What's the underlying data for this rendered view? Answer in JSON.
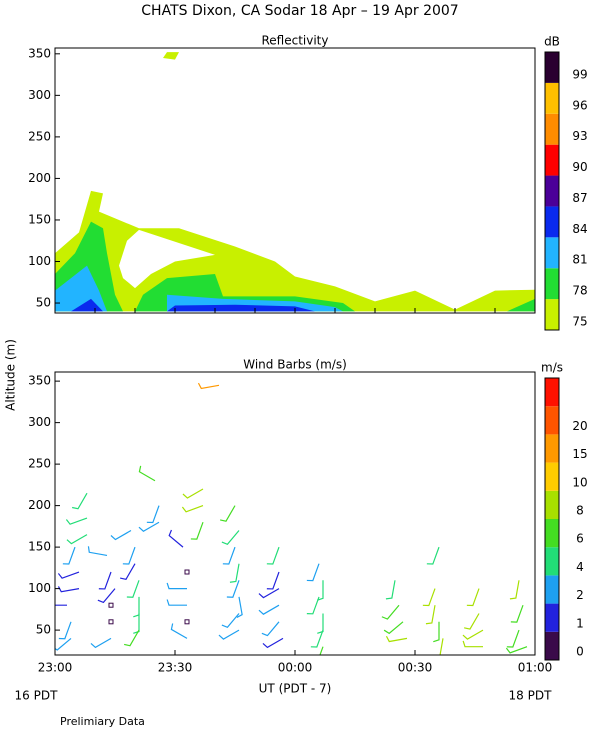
{
  "title": "CHATS Dixon, CA  Sodar  18 Apr – 19 Apr 2007",
  "xlabel": "UT  (PDT - 7)",
  "ylabel": "Altitude (m)",
  "date_labels": [
    "16 PDT",
    "18 PDT"
  ],
  "note": "Prelimiary Data",
  "chart_data": [
    {
      "type": "contour",
      "title": "Reflectivity",
      "xlim": [
        0,
        120
      ],
      "ylim": [
        38,
        357
      ],
      "xticks": [
        0,
        10,
        20,
        30,
        40,
        50,
        60,
        70,
        80,
        90,
        100,
        110,
        120
      ],
      "yticks": [
        50,
        100,
        150,
        200,
        250,
        300,
        350
      ],
      "colorbar": {
        "label": "dB",
        "levels": [
          75,
          78,
          81,
          84,
          87,
          90,
          93,
          96,
          99
        ],
        "colors": [
          "#c8f000",
          "#22dd33",
          "#22b4ff",
          "#0a2aee",
          "#4b0099",
          "#ff0000",
          "#ff8c00",
          "#ffc000",
          "#2a0030"
        ]
      },
      "regions": [
        {
          "color": "#c8f000",
          "rings": [
            [
              [
                0,
                40
              ],
              [
                0,
                110
              ],
              [
                6,
                135
              ],
              [
                9,
                185
              ],
              [
                12,
                182
              ],
              [
                11,
                160
              ],
              [
                21,
                140
              ],
              [
                31,
                140
              ],
              [
                45,
                118
              ],
              [
                55,
                100
              ],
              [
                60,
                82
              ],
              [
                70,
                70
              ],
              [
                80,
                52
              ],
              [
                90,
                65
              ],
              [
                100,
                42
              ],
              [
                110,
                65
              ],
              [
                120,
                66
              ],
              [
                120,
                40
              ]
            ],
            [
              [
                16,
                95
              ],
              [
                18,
                125
              ],
              [
                21,
                138
              ],
              [
                40,
                108
              ],
              [
                30,
                100
              ],
              [
                24,
                85
              ],
              [
                20,
                68
              ],
              [
                17,
                80
              ]
            ],
            [
              [
                27,
                345
              ],
              [
                28,
                352
              ],
              [
                31,
                352
              ],
              [
                30,
                343
              ]
            ]
          ]
        },
        {
          "color": "#22dd33",
          "rings": [
            [
              [
                0,
                40
              ],
              [
                0,
                85
              ],
              [
                5,
                110
              ],
              [
                9,
                148
              ],
              [
                12,
                140
              ],
              [
                13,
                110
              ],
              [
                15,
                60
              ],
              [
                17,
                40
              ]
            ],
            [
              [
                20,
                40
              ],
              [
                22,
                60
              ],
              [
                28,
                80
              ],
              [
                40,
                85
              ],
              [
                42,
                58
              ],
              [
                60,
                58
              ],
              [
                72,
                50
              ],
              [
                75,
                40
              ]
            ],
            [
              [
                113,
                40
              ],
              [
                120,
                55
              ],
              [
                120,
                40
              ]
            ]
          ]
        },
        {
          "color": "#22b4ff",
          "rings": [
            [
              [
                0,
                40
              ],
              [
                0,
                65
              ],
              [
                8,
                95
              ],
              [
                11,
                65
              ],
              [
                13,
                40
              ]
            ],
            [
              [
                28,
                40
              ],
              [
                28,
                60
              ],
              [
                42,
                55
              ],
              [
                60,
                52
              ],
              [
                70,
                45
              ],
              [
                72,
                40
              ]
            ]
          ]
        },
        {
          "color": "#0a2aee",
          "rings": [
            [
              [
                4,
                40
              ],
              [
                9,
                55
              ],
              [
                12,
                40
              ]
            ],
            [
              [
                28,
                40
              ],
              [
                30,
                47
              ],
              [
                45,
                48
              ],
              [
                60,
                46
              ],
              [
                65,
                40
              ]
            ]
          ]
        }
      ]
    },
    {
      "type": "barbs",
      "title": "Wind Barbs (m/s)",
      "xlim": [
        0,
        120
      ],
      "ylim": [
        20,
        361
      ],
      "xticks": [
        {
          "value": 0,
          "label": "23:00"
        },
        {
          "value": 30,
          "label": "23:30"
        },
        {
          "value": 60,
          "label": "00:00"
        },
        {
          "value": 90,
          "label": "00:30"
        },
        {
          "value": 120,
          "label": "01:00"
        }
      ],
      "yticks": [
        50,
        100,
        150,
        200,
        250,
        300,
        350
      ],
      "colorbar": {
        "label": "m/s",
        "levels": [
          0,
          1,
          2,
          4,
          6,
          8,
          10,
          15,
          20
        ],
        "colors": [
          "#3a0a4a",
          "#2222dd",
          "#1ea0f0",
          "#22dd77",
          "#44dd22",
          "#a8e000",
          "#ffcc00",
          "#ff9900",
          "#ff5500",
          "#ff1100"
        ]
      },
      "x": [
        3,
        4,
        4,
        5,
        6,
        6,
        8,
        8,
        8,
        13,
        14,
        15,
        14,
        14,
        14,
        19,
        20,
        20,
        21,
        21,
        21,
        21,
        25,
        26,
        26,
        32,
        33,
        33,
        33,
        33,
        33,
        37,
        37,
        37,
        41,
        45,
        46,
        45,
        46,
        46,
        46,
        46,
        46,
        56,
        56,
        56,
        56,
        56,
        57,
        66,
        67,
        66,
        67,
        67,
        67,
        85,
        86,
        87,
        88,
        96,
        95,
        95,
        96,
        97,
        106,
        106,
        107,
        107,
        116,
        117,
        116,
        118
      ],
      "altitude": [
        80,
        60,
        40,
        150,
        120,
        100,
        215,
        185,
        165,
        140,
        120,
        100,
        80,
        60,
        40,
        170,
        150,
        130,
        110,
        90,
        70,
        50,
        230,
        200,
        180,
        150,
        120,
        100,
        80,
        60,
        40,
        220,
        200,
        180,
        345,
        200,
        170,
        150,
        130,
        110,
        90,
        70,
        50,
        150,
        120,
        100,
        80,
        60,
        40,
        130,
        110,
        90,
        70,
        50,
        30,
        110,
        80,
        60,
        40,
        150,
        100,
        80,
        60,
        40,
        100,
        70,
        50,
        30,
        110,
        80,
        50,
        30
      ],
      "speed": [
        1.5,
        2.5,
        2.5,
        3,
        1.2,
        1,
        5,
        5,
        5,
        2,
        1,
        1,
        0,
        0,
        3,
        3,
        2,
        1.2,
        5,
        4.5,
        5,
        6,
        6,
        3,
        3,
        1.5,
        0,
        3,
        2,
        0,
        3,
        8.5,
        8.5,
        6,
        17,
        6,
        4.5,
        3,
        4,
        3.5,
        3.5,
        3,
        3,
        5,
        1,
        1.5,
        2,
        2,
        1.5,
        3,
        4.5,
        4.5,
        5,
        5,
        7,
        5,
        7,
        7,
        8.5,
        4,
        8,
        8,
        6,
        8.5,
        8,
        8.5,
        8,
        8.5,
        8,
        7,
        6,
        6
      ],
      "direction": [
        270,
        200,
        230,
        200,
        250,
        260,
        210,
        250,
        240,
        280,
        200,
        220,
        0,
        0,
        240,
        240,
        200,
        210,
        200,
        180,
        180,
        210,
        300,
        200,
        240,
        310,
        0,
        270,
        270,
        0,
        300,
        240,
        250,
        200,
        260,
        210,
        220,
        200,
        190,
        200,
        170,
        220,
        240,
        200,
        200,
        240,
        240,
        220,
        240,
        200,
        180,
        200,
        180,
        200,
        200,
        190,
        220,
        230,
        260,
        200,
        200,
        190,
        180,
        190,
        200,
        210,
        240,
        270,
        190,
        200,
        200,
        250
      ]
    }
  ]
}
